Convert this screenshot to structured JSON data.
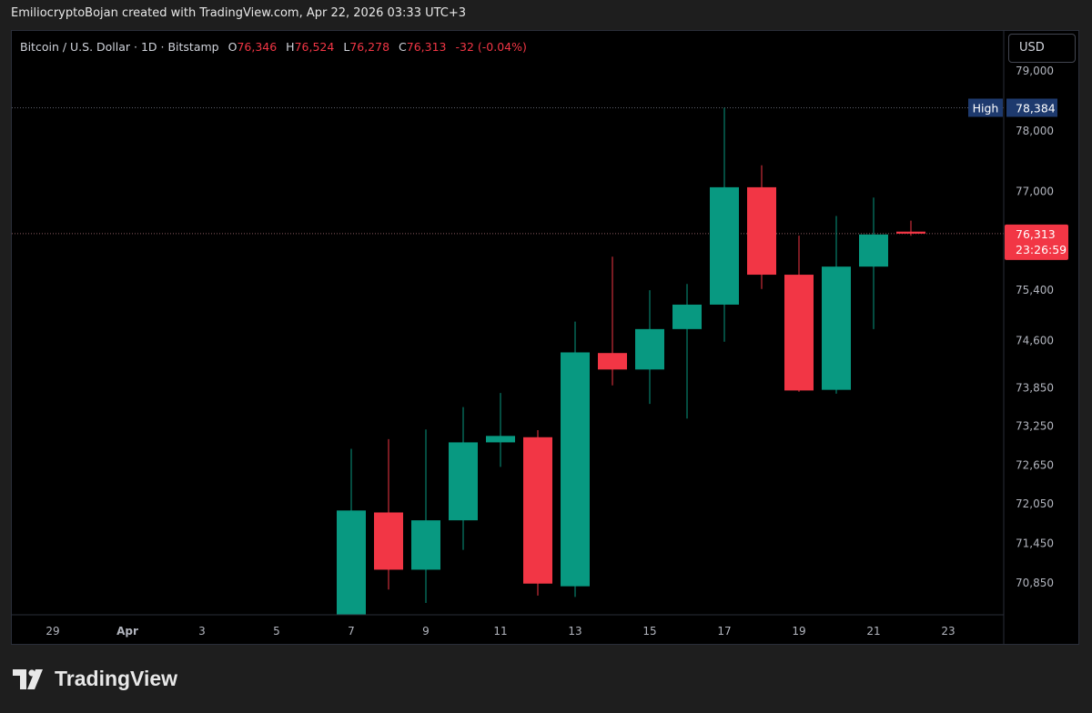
{
  "header": {
    "attribution": "EmiliocryptoBojan created with TradingView.com, Apr 22, 2026 03:33 UTC+3"
  },
  "legend": {
    "symbol": "Bitcoin / U.S. Dollar · 1D · Bitstamp",
    "o_key": "O",
    "o_val": "76,346",
    "h_key": "H",
    "h_val": "76,524",
    "l_key": "L",
    "l_val": "76,278",
    "c_key": "C",
    "c_val": "76,313",
    "change": "-32 (-0.04%)"
  },
  "currency_button": "USD",
  "branding": {
    "name": "TradingView"
  },
  "colors": {
    "up": "#089981",
    "down": "#f23645",
    "background": "#000000",
    "high_badge": "#1e3a6e"
  },
  "chart_data": {
    "type": "candlestick",
    "title": "Bitcoin / U.S. Dollar · 1D · Bitstamp",
    "y_scale": "log",
    "y_ticks": [
      {
        "value": 79000,
        "label": "79,000"
      },
      {
        "value": 78000,
        "label": "78,000"
      },
      {
        "value": 77000,
        "label": "77,000"
      },
      {
        "value": 75400,
        "label": "75,400"
      },
      {
        "value": 74600,
        "label": "74,600"
      },
      {
        "value": 73850,
        "label": "73,850"
      },
      {
        "value": 73250,
        "label": "73,250"
      },
      {
        "value": 72650,
        "label": "72,650"
      },
      {
        "value": 72050,
        "label": "72,050"
      },
      {
        "value": 71450,
        "label": "71,450"
      },
      {
        "value": 70850,
        "label": "70,850"
      }
    ],
    "x_ticks": [
      {
        "day": -1,
        "label": "29"
      },
      {
        "day": 1,
        "label": "Apr"
      },
      {
        "day": 3,
        "label": "3"
      },
      {
        "day": 5,
        "label": "5"
      },
      {
        "day": 7,
        "label": "7"
      },
      {
        "day": 9,
        "label": "9"
      },
      {
        "day": 11,
        "label": "11"
      },
      {
        "day": 13,
        "label": "13"
      },
      {
        "day": 15,
        "label": "15"
      },
      {
        "day": 17,
        "label": "17"
      },
      {
        "day": 19,
        "label": "19"
      },
      {
        "day": 21,
        "label": "21"
      },
      {
        "day": 23,
        "label": "23"
      }
    ],
    "candles": [
      {
        "date": "2026-04-07",
        "day": 7,
        "open": 70200,
        "high": 72900,
        "low": 70200,
        "close": 71950
      },
      {
        "date": "2026-04-08",
        "day": 8,
        "open": 71920,
        "high": 73050,
        "low": 70750,
        "close": 71050
      },
      {
        "date": "2026-04-09",
        "day": 9,
        "open": 71050,
        "high": 73200,
        "low": 70550,
        "close": 71800
      },
      {
        "date": "2026-04-10",
        "day": 10,
        "open": 71800,
        "high": 73550,
        "low": 71350,
        "close": 73000
      },
      {
        "date": "2026-04-11",
        "day": 11,
        "open": 73000,
        "high": 73770,
        "low": 72620,
        "close": 73100
      },
      {
        "date": "2026-04-12",
        "day": 12,
        "open": 73080,
        "high": 73190,
        "low": 70660,
        "close": 70840
      },
      {
        "date": "2026-04-13",
        "day": 13,
        "open": 70800,
        "high": 74900,
        "low": 70640,
        "close": 74410
      },
      {
        "date": "2026-04-14",
        "day": 14,
        "open": 74400,
        "high": 75940,
        "low": 73890,
        "close": 74140
      },
      {
        "date": "2026-04-15",
        "day": 15,
        "open": 74140,
        "high": 75400,
        "low": 73600,
        "close": 74780
      },
      {
        "date": "2026-04-16",
        "day": 16,
        "open": 74780,
        "high": 75500,
        "low": 73370,
        "close": 75170
      },
      {
        "date": "2026-04-17",
        "day": 17,
        "open": 75170,
        "high": 78384,
        "low": 74580,
        "close": 77070
      },
      {
        "date": "2026-04-18",
        "day": 18,
        "open": 77070,
        "high": 77430,
        "low": 75420,
        "close": 75650
      },
      {
        "date": "2026-04-19",
        "day": 19,
        "open": 75650,
        "high": 76280,
        "low": 73790,
        "close": 73810
      },
      {
        "date": "2026-04-20",
        "day": 20,
        "open": 73820,
        "high": 76600,
        "low": 73760,
        "close": 75780
      },
      {
        "date": "2026-04-21",
        "day": 21,
        "open": 75780,
        "high": 76900,
        "low": 74780,
        "close": 76300
      },
      {
        "date": "2026-04-22",
        "day": 22,
        "open": 76346,
        "high": 76524,
        "low": 76278,
        "close": 76313
      }
    ],
    "high_marker": {
      "label": "High",
      "value": 78384,
      "text": "78,384"
    },
    "last_price": {
      "value": 76313,
      "text": "76,313",
      "countdown": "23:26:59"
    }
  }
}
